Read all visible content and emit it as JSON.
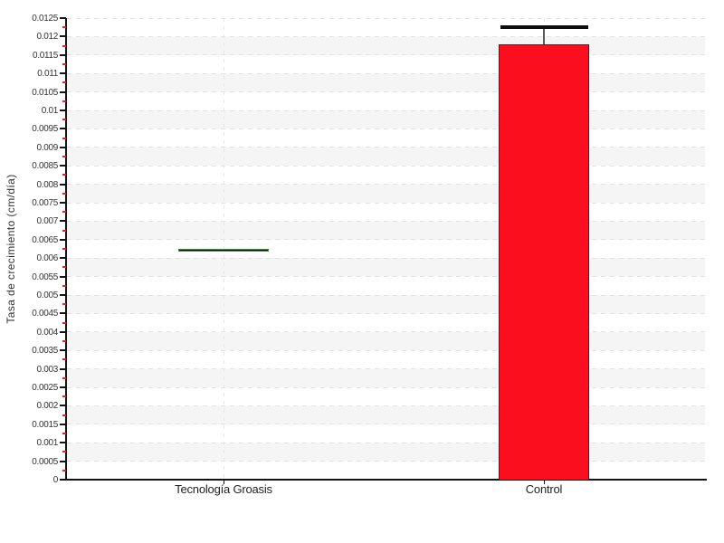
{
  "chart_data": {
    "type": "bar",
    "title": "",
    "xlabel": "",
    "ylabel": "Tasa de crecimiento (cm/día)",
    "categories": [
      "Tecnología Groasis",
      "Control"
    ],
    "series": [
      {
        "name": "Tasa de crecimiento (cm/día)",
        "values": [
          0.0062,
          0.0118
        ],
        "error_high": [
          0.0062,
          0.01225
        ]
      }
    ],
    "ylim": [
      0,
      0.0125
    ],
    "ytick_step_major": 0.0005,
    "ytick_step_minor": 0.00025,
    "ytick_labels": [
      "0",
      "0.0005",
      "0.001",
      "0.0015",
      "0.002",
      "0.0025",
      "0.003",
      "0.0035",
      "0.004",
      "0.0045",
      "0.005",
      "0.0055",
      "0.006",
      "0.0065",
      "0.007",
      "0.0075",
      "0.008",
      "0.0085",
      "0.009",
      "0.0095",
      "0.01",
      "0.0105",
      "0.011",
      "0.0115",
      "0.012",
      "0.0125"
    ],
    "legend": "none",
    "grid": {
      "horizontal_major": "dashed",
      "vertical_at_categories": "dashed",
      "background_bands": "alternating white / light gray every 0.0005"
    },
    "bar_styles": [
      {
        "category": "Tecnología Groasis",
        "render": "flat-line",
        "fill": "#000000",
        "edge": "#2f9e2f"
      },
      {
        "category": "Control",
        "render": "filled-bar",
        "fill": "#fb0e1d",
        "edge": "#6a1220"
      }
    ],
    "colors": {
      "band": "#f5f5f6",
      "grid_line": "#e2e2e2",
      "vertical_grid_line": "#e7e7e7",
      "axis": "#141414",
      "tick_label": "#333333",
      "minor_tick": "#ff1a1a",
      "error_bar_line": "#5a5a5a",
      "error_bar_cap": "#0d0d0d"
    }
  }
}
